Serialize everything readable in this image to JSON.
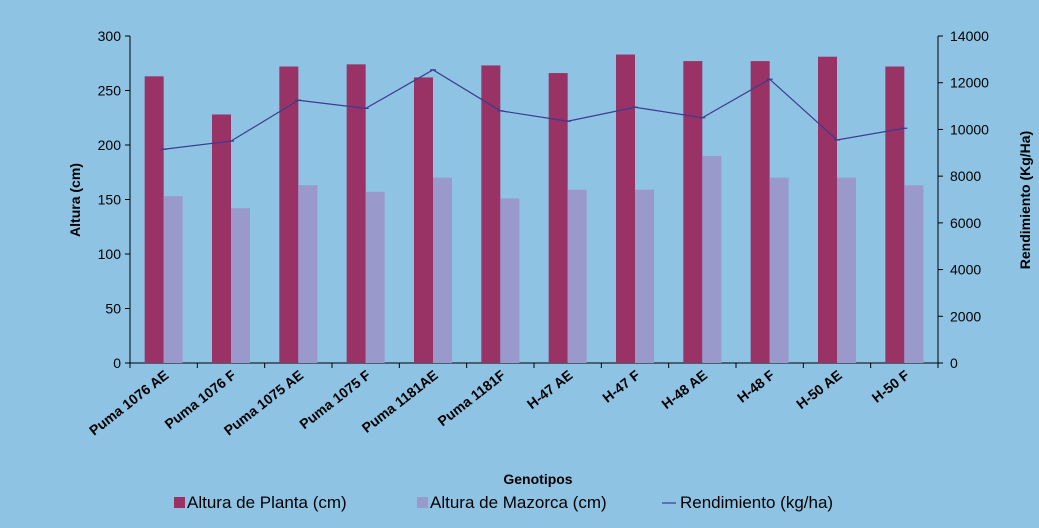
{
  "chart_data": {
    "type": "bar",
    "xlabel": "Genotipos",
    "ylabel": "Altura (cm)",
    "y2label": "Rendimiento (Kg/Ha)",
    "ylim": [
      0,
      300
    ],
    "y2lim": [
      0,
      14000
    ],
    "yticks": [
      "0",
      "50",
      "100",
      "150",
      "200",
      "250",
      "300"
    ],
    "y2ticks": [
      "0",
      "2000",
      "4000",
      "6000",
      "8000",
      "10000",
      "12000",
      "14000"
    ],
    "grid": false,
    "legend_position": "bottom",
    "categories": [
      "Puma 1076 AE",
      "Puma 1076 F",
      "Puma 1075 AE",
      "Puma 1075 F",
      "Puma 1181AE",
      "Puma 1181F",
      "H-47 AE",
      "H-47 F",
      "H-48 AE",
      "H-48 F",
      "H-50 AE",
      "H-50 F"
    ],
    "series": [
      {
        "name": "Altura de Planta (cm)",
        "type": "bar",
        "axis": "left",
        "color": "#993366",
        "values": [
          263,
          228,
          272,
          274,
          262,
          273,
          266,
          283,
          277,
          277,
          281,
          272
        ]
      },
      {
        "name": "Altura de Mazorca (cm)",
        "type": "bar",
        "axis": "left",
        "color": "#9999cc",
        "values": [
          153,
          142,
          163,
          157,
          170,
          151,
          159,
          159,
          190,
          170,
          170,
          163
        ]
      },
      {
        "name": "Rendimiento  (kg/ha)",
        "type": "line",
        "axis": "right",
        "color": "#3b3b8f",
        "values": [
          9150,
          9500,
          11250,
          10900,
          12550,
          10800,
          10350,
          10950,
          10500,
          12150,
          9550,
          10050
        ]
      }
    ]
  }
}
